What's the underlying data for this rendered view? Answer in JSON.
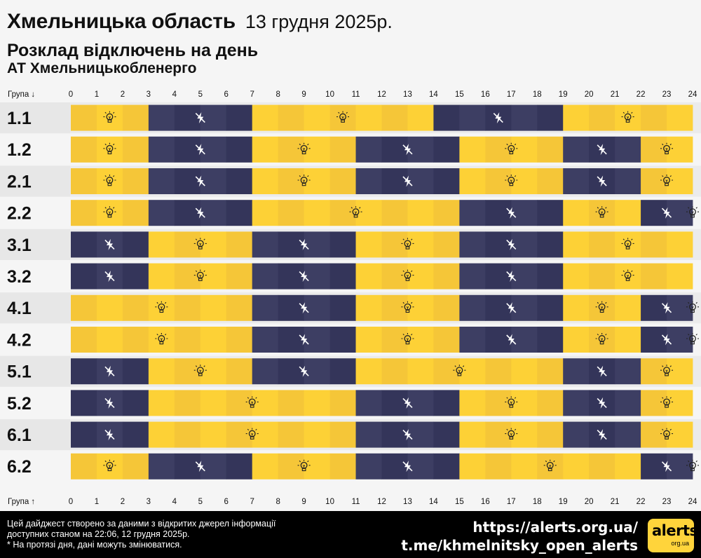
{
  "header": {
    "title": "Хмельницька область",
    "date": "13 грудня 2025р.",
    "subtitle": "Розклад відключень на день",
    "company": "АТ Хмельницькобленерго"
  },
  "colors": {
    "power_on": "#fdd136",
    "power_on_alt": "#f5c638",
    "power_off": "#3d3e63",
    "power_off_alt": "#34355a",
    "row_label_bg": "#e7e7e7",
    "background": "#f5f5f5"
  },
  "legend_icons": {
    "on": "light-bulb-icon",
    "off": "no-power-icon"
  },
  "chart_data": {
    "type": "table",
    "x_axis_label_top": "Група ↓",
    "x_axis_label_bottom": "Група ↑",
    "hours": [
      "0",
      "1",
      "2",
      "3",
      "4",
      "5",
      "6",
      "7",
      "8",
      "9",
      "10",
      "11",
      "12",
      "13",
      "14",
      "15",
      "16",
      "17",
      "18",
      "19",
      "20",
      "21",
      "22",
      "23",
      "24"
    ],
    "xlim": [
      0,
      24
    ],
    "groups": [
      {
        "name": "1.1",
        "segments": [
          {
            "from": 0,
            "to": 3,
            "state": "on"
          },
          {
            "from": 3,
            "to": 7,
            "state": "off"
          },
          {
            "from": 7,
            "to": 14,
            "state": "on"
          },
          {
            "from": 14,
            "to": 19,
            "state": "off"
          },
          {
            "from": 19,
            "to": 24,
            "state": "on"
          }
        ]
      },
      {
        "name": "1.2",
        "segments": [
          {
            "from": 0,
            "to": 3,
            "state": "on"
          },
          {
            "from": 3,
            "to": 7,
            "state": "off"
          },
          {
            "from": 7,
            "to": 11,
            "state": "on"
          },
          {
            "from": 11,
            "to": 15,
            "state": "off"
          },
          {
            "from": 15,
            "to": 19,
            "state": "on"
          },
          {
            "from": 19,
            "to": 22,
            "state": "off"
          },
          {
            "from": 22,
            "to": 24,
            "state": "on"
          }
        ]
      },
      {
        "name": "2.1",
        "segments": [
          {
            "from": 0,
            "to": 3,
            "state": "on"
          },
          {
            "from": 3,
            "to": 7,
            "state": "off"
          },
          {
            "from": 7,
            "to": 11,
            "state": "on"
          },
          {
            "from": 11,
            "to": 15,
            "state": "off"
          },
          {
            "from": 15,
            "to": 19,
            "state": "on"
          },
          {
            "from": 19,
            "to": 22,
            "state": "off"
          },
          {
            "from": 22,
            "to": 24,
            "state": "on"
          }
        ]
      },
      {
        "name": "2.2",
        "segments": [
          {
            "from": 0,
            "to": 3,
            "state": "on"
          },
          {
            "from": 3,
            "to": 7,
            "state": "off"
          },
          {
            "from": 7,
            "to": 15,
            "state": "on"
          },
          {
            "from": 15,
            "to": 19,
            "state": "off"
          },
          {
            "from": 19,
            "to": 22,
            "state": "on"
          },
          {
            "from": 22,
            "to": 24,
            "state": "off"
          },
          {
            "from": 24,
            "to": 24,
            "state": "on"
          }
        ]
      },
      {
        "name": "3.1",
        "segments": [
          {
            "from": 0,
            "to": 3,
            "state": "off"
          },
          {
            "from": 3,
            "to": 7,
            "state": "on"
          },
          {
            "from": 7,
            "to": 11,
            "state": "off"
          },
          {
            "from": 11,
            "to": 15,
            "state": "on"
          },
          {
            "from": 15,
            "to": 19,
            "state": "off"
          },
          {
            "from": 19,
            "to": 24,
            "state": "on"
          }
        ]
      },
      {
        "name": "3.2",
        "segments": [
          {
            "from": 0,
            "to": 3,
            "state": "off"
          },
          {
            "from": 3,
            "to": 7,
            "state": "on"
          },
          {
            "from": 7,
            "to": 11,
            "state": "off"
          },
          {
            "from": 11,
            "to": 15,
            "state": "on"
          },
          {
            "from": 15,
            "to": 19,
            "state": "off"
          },
          {
            "from": 19,
            "to": 24,
            "state": "on"
          }
        ]
      },
      {
        "name": "4.1",
        "segments": [
          {
            "from": 0,
            "to": 7,
            "state": "on"
          },
          {
            "from": 7,
            "to": 11,
            "state": "off"
          },
          {
            "from": 11,
            "to": 15,
            "state": "on"
          },
          {
            "from": 15,
            "to": 19,
            "state": "off"
          },
          {
            "from": 19,
            "to": 22,
            "state": "on"
          },
          {
            "from": 22,
            "to": 24,
            "state": "off"
          },
          {
            "from": 24,
            "to": 24,
            "state": "on"
          }
        ]
      },
      {
        "name": "4.2",
        "segments": [
          {
            "from": 0,
            "to": 7,
            "state": "on"
          },
          {
            "from": 7,
            "to": 11,
            "state": "off"
          },
          {
            "from": 11,
            "to": 15,
            "state": "on"
          },
          {
            "from": 15,
            "to": 19,
            "state": "off"
          },
          {
            "from": 19,
            "to": 22,
            "state": "on"
          },
          {
            "from": 22,
            "to": 24,
            "state": "off"
          },
          {
            "from": 24,
            "to": 24,
            "state": "on"
          }
        ]
      },
      {
        "name": "5.1",
        "segments": [
          {
            "from": 0,
            "to": 3,
            "state": "off"
          },
          {
            "from": 3,
            "to": 7,
            "state": "on"
          },
          {
            "from": 7,
            "to": 11,
            "state": "off"
          },
          {
            "from": 11,
            "to": 19,
            "state": "on"
          },
          {
            "from": 19,
            "to": 22,
            "state": "off"
          },
          {
            "from": 22,
            "to": 24,
            "state": "on"
          }
        ]
      },
      {
        "name": "5.2",
        "segments": [
          {
            "from": 0,
            "to": 3,
            "state": "off"
          },
          {
            "from": 3,
            "to": 11,
            "state": "on"
          },
          {
            "from": 11,
            "to": 15,
            "state": "off"
          },
          {
            "from": 15,
            "to": 19,
            "state": "on"
          },
          {
            "from": 19,
            "to": 22,
            "state": "off"
          },
          {
            "from": 22,
            "to": 24,
            "state": "on"
          }
        ]
      },
      {
        "name": "6.1",
        "segments": [
          {
            "from": 0,
            "to": 3,
            "state": "off"
          },
          {
            "from": 3,
            "to": 11,
            "state": "on"
          },
          {
            "from": 11,
            "to": 15,
            "state": "off"
          },
          {
            "from": 15,
            "to": 19,
            "state": "on"
          },
          {
            "from": 19,
            "to": 22,
            "state": "off"
          },
          {
            "from": 22,
            "to": 24,
            "state": "on"
          }
        ]
      },
      {
        "name": "6.2",
        "segments": [
          {
            "from": 0,
            "to": 3,
            "state": "on"
          },
          {
            "from": 3,
            "to": 7,
            "state": "off"
          },
          {
            "from": 7,
            "to": 11,
            "state": "on"
          },
          {
            "from": 11,
            "to": 15,
            "state": "off"
          },
          {
            "from": 15,
            "to": 22,
            "state": "on"
          },
          {
            "from": 22,
            "to": 24,
            "state": "off"
          },
          {
            "from": 24,
            "to": 24,
            "state": "on"
          }
        ]
      }
    ]
  },
  "footer": {
    "note_lines": [
      "Цей дайджест створено за даними з відкритих джерел інформації",
      "доступних станом на 22:06, 12 грудня 2025р.",
      "* На протязі дня, дані можуть змінюватися."
    ],
    "link_site": "https://alerts.org.ua/",
    "link_telegram": "t.me/khmelnitsky_open_alerts",
    "logo_text": "alerts",
    "logo_sub": "org.ua"
  }
}
